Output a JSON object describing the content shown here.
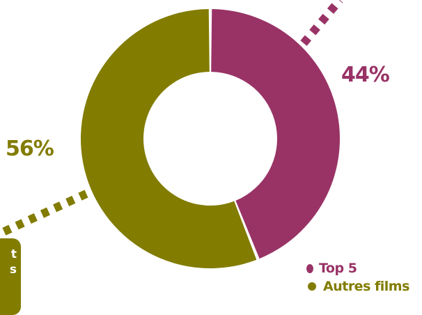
{
  "colors": {
    "top5": "#993366",
    "autres": "#827C00"
  },
  "side_box": {
    "lines": [
      "t",
      "s",
      ""
    ]
  },
  "chart_data": {
    "type": "pie",
    "variant": "donut",
    "title": "",
    "slices": [
      {
        "label": "Top 5",
        "value": 44,
        "display": "44%",
        "color": "#993366"
      },
      {
        "label": "Autres films",
        "value": 56,
        "display": "56%",
        "color": "#827C00"
      }
    ],
    "legend": {
      "placement": "bottom-right",
      "items": [
        "Top 5",
        "Autres films"
      ]
    }
  }
}
